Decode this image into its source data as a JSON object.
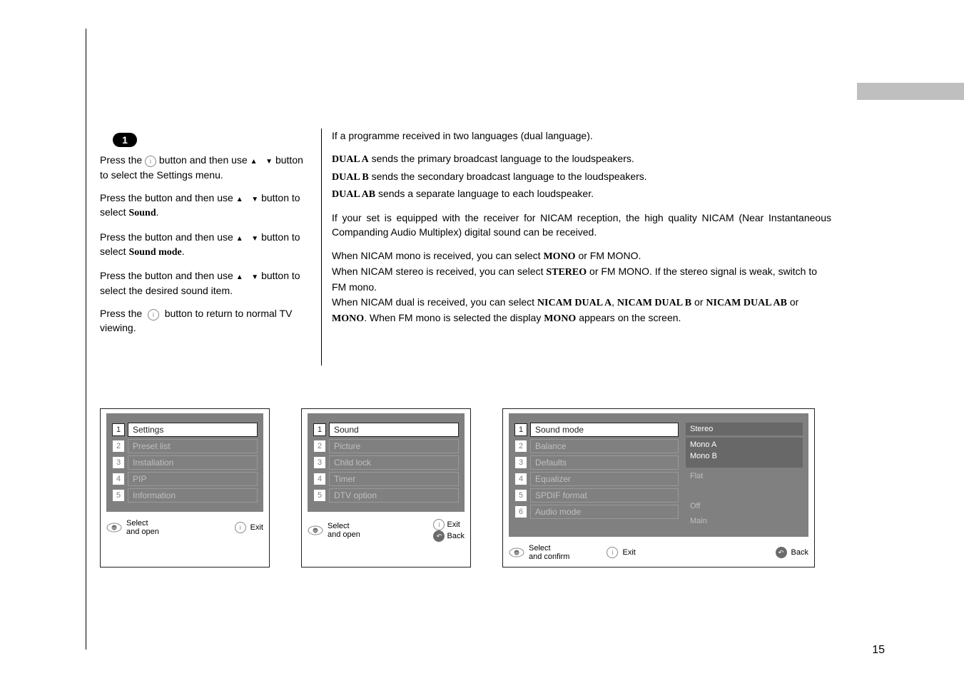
{
  "page_number": "15",
  "left": {
    "step_badge": "1",
    "p1_a": "Press the ",
    "p1_b": " button and then use ",
    "p1_c": "button to select the Settings menu.",
    "p2_a": "Press the    button and then use ",
    "p2_b": "button to select ",
    "p2_c": "Sound",
    "p2_d": ".",
    "p3_a": "Press the    button and then use ",
    "p3_b": "button to select ",
    "p3_c": "Sound mode",
    "p3_d": ".",
    "p4_a": "Press the    button and then use ",
    "p4_b": "button to select the desired sound item.",
    "p5_a": "Press the ",
    "p5_b": " button to return to normal TV viewing."
  },
  "right": {
    "r1": "If a programme received in two languages (dual language).",
    "r2_a": "DUAL A",
    "r2_b": " sends the primary broadcast language to the loudspeakers.",
    "r3_a": "DUAL B",
    "r3_b": " sends the secondary broadcast language to the loudspeakers.",
    "r4_a": "DUAL AB",
    "r4_b": " sends a separate language to each loudspeaker.",
    "r5": "If your set is equipped with the receiver for NICAM reception, the high quality NICAM (Near Instantaneous Companding Audio Multiplex) digital sound can be received.",
    "r6_a": "When NICAM mono is received, you can select ",
    "r6_b": "MONO",
    "r6_c": " or FM MONO.",
    "r7_a": "When NICAM stereo is received, you can select ",
    "r7_b": "STEREO",
    "r7_c": " or FM MONO. If the stereo signal is weak, switch to FM mono.",
    "r8_a": "When NICAM dual is received, you can select ",
    "r8_b": "NICAM DUAL A",
    "r8_c": ", ",
    "r8_d": "NICAM DUAL B",
    "r8_e": " or ",
    "r8_f": "NICAM DUAL AB",
    "r8_g": " or ",
    "r8_h": "MONO",
    "r8_i": ". When FM mono is selected the display ",
    "r8_j": "MONO",
    "r8_k": " appears on the screen."
  },
  "osd_a": {
    "items": [
      {
        "num": "1",
        "label": "Settings",
        "active": true
      },
      {
        "num": "2",
        "label": "Preset list",
        "active": false
      },
      {
        "num": "3",
        "label": "Installation",
        "active": false
      },
      {
        "num": "4",
        "label": "PIP",
        "active": false
      },
      {
        "num": "5",
        "label": "Information",
        "active": false
      }
    ],
    "hint_select": "Select",
    "hint_select2": "and open",
    "hint_exit": "Exit"
  },
  "osd_b": {
    "items": [
      {
        "num": "1",
        "label": "Sound",
        "active": true
      },
      {
        "num": "2",
        "label": "Picture",
        "active": false
      },
      {
        "num": "3",
        "label": "Child lock",
        "active": false
      },
      {
        "num": "4",
        "label": "Timer",
        "active": false
      },
      {
        "num": "5",
        "label": "DTV option",
        "active": false
      }
    ],
    "hint_select": "Select",
    "hint_select2": "and open",
    "hint_exit": "Exit",
    "hint_back": "Back"
  },
  "osd_c": {
    "items": [
      {
        "num": "1",
        "label": "Sound mode",
        "active": true
      },
      {
        "num": "2",
        "label": "Balance",
        "active": false
      },
      {
        "num": "3",
        "label": "Defaults",
        "active": false
      },
      {
        "num": "4",
        "label": "Equalizer",
        "active": false
      },
      {
        "num": "5",
        "label": "SPDIF format",
        "active": false
      },
      {
        "num": "6",
        "label": "Audio mode",
        "active": false
      }
    ],
    "vals": [
      {
        "text_a": "Stereo",
        "text_b": "",
        "text_c": "",
        "dark": true,
        "white_a": true
      },
      {
        "text_a": "",
        "text_b": "Mono A",
        "text_c": "Mono B",
        "dark": true,
        "two": true
      },
      {
        "text_a": "Flat",
        "dark": false
      },
      {
        "text_a": "",
        "dark": false,
        "blank": true
      },
      {
        "text_a": "Off",
        "dark": false
      },
      {
        "text_a": "Main",
        "dark": false
      }
    ],
    "hint_select": "Select",
    "hint_select2": "and confirm",
    "hint_exit": "Exit",
    "hint_back": "Back"
  },
  "colors": {
    "osd_bg": "#808080",
    "muted": "#bfbfbf",
    "text": "#231f20"
  }
}
